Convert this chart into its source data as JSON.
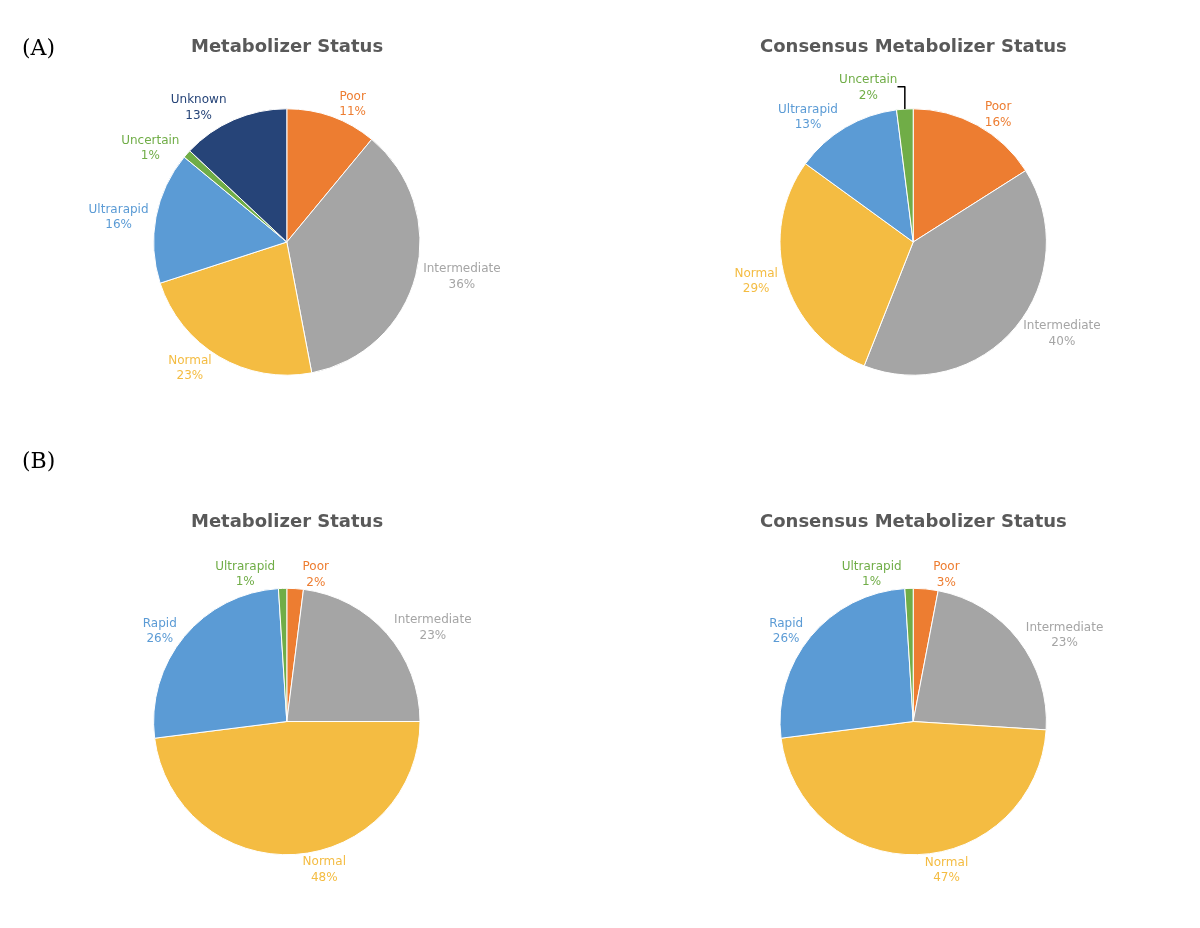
{
  "chart_data": [
    {
      "type": "pie",
      "title": "Metabolizer Status",
      "annotations": [
        "(A)"
      ],
      "categories": [
        "Poor",
        "Intermediate",
        "Normal",
        "Ultrarapid",
        "Uncertain",
        "Unknown"
      ],
      "values": [
        11,
        36,
        23,
        16,
        1,
        13
      ],
      "value_labels": [
        "11%",
        "36%",
        "23%",
        "16%",
        "1%",
        "13%"
      ],
      "colors": [
        "#ed7d31",
        "#a5a5a5",
        "#f4bc42",
        "#5b9bd5",
        "#70ad47",
        "#264478"
      ],
      "legend": false
    },
    {
      "type": "pie",
      "title": "Consensus Metabolizer Status",
      "categories": [
        "Poor",
        "Intermediate",
        "Normal",
        "Ultrarapid",
        "Uncertain"
      ],
      "values": [
        16,
        40,
        29,
        13,
        2
      ],
      "value_labels": [
        "16%",
        "40%",
        "29%",
        "13%",
        "2%"
      ],
      "colors": [
        "#ed7d31",
        "#a5a5a5",
        "#f4bc42",
        "#5b9bd5",
        "#70ad47"
      ],
      "legend": false
    },
    {
      "type": "pie",
      "title": "Metabolizer Status",
      "annotations": [
        "(B)"
      ],
      "categories": [
        "Poor",
        "Intermediate",
        "Normal",
        "Rapid",
        "Ultrarapid"
      ],
      "values": [
        2,
        23,
        48,
        26,
        1
      ],
      "value_labels": [
        "2%",
        "23%",
        "48%",
        "26%",
        "1%"
      ],
      "colors": [
        "#ed7d31",
        "#a5a5a5",
        "#f4bc42",
        "#5b9bd5",
        "#70ad47"
      ],
      "legend": false
    },
    {
      "type": "pie",
      "title": "Consensus Metabolizer Status",
      "categories": [
        "Poor",
        "Intermediate",
        "Normal",
        "Rapid",
        "Ultrarapid"
      ],
      "values": [
        3,
        23,
        47,
        26,
        1
      ],
      "value_labels": [
        "3%",
        "23%",
        "47%",
        "26%",
        "1%"
      ],
      "colors": [
        "#ed7d31",
        "#a5a5a5",
        "#f4bc42",
        "#5b9bd5",
        "#70ad47"
      ],
      "legend": false
    }
  ]
}
